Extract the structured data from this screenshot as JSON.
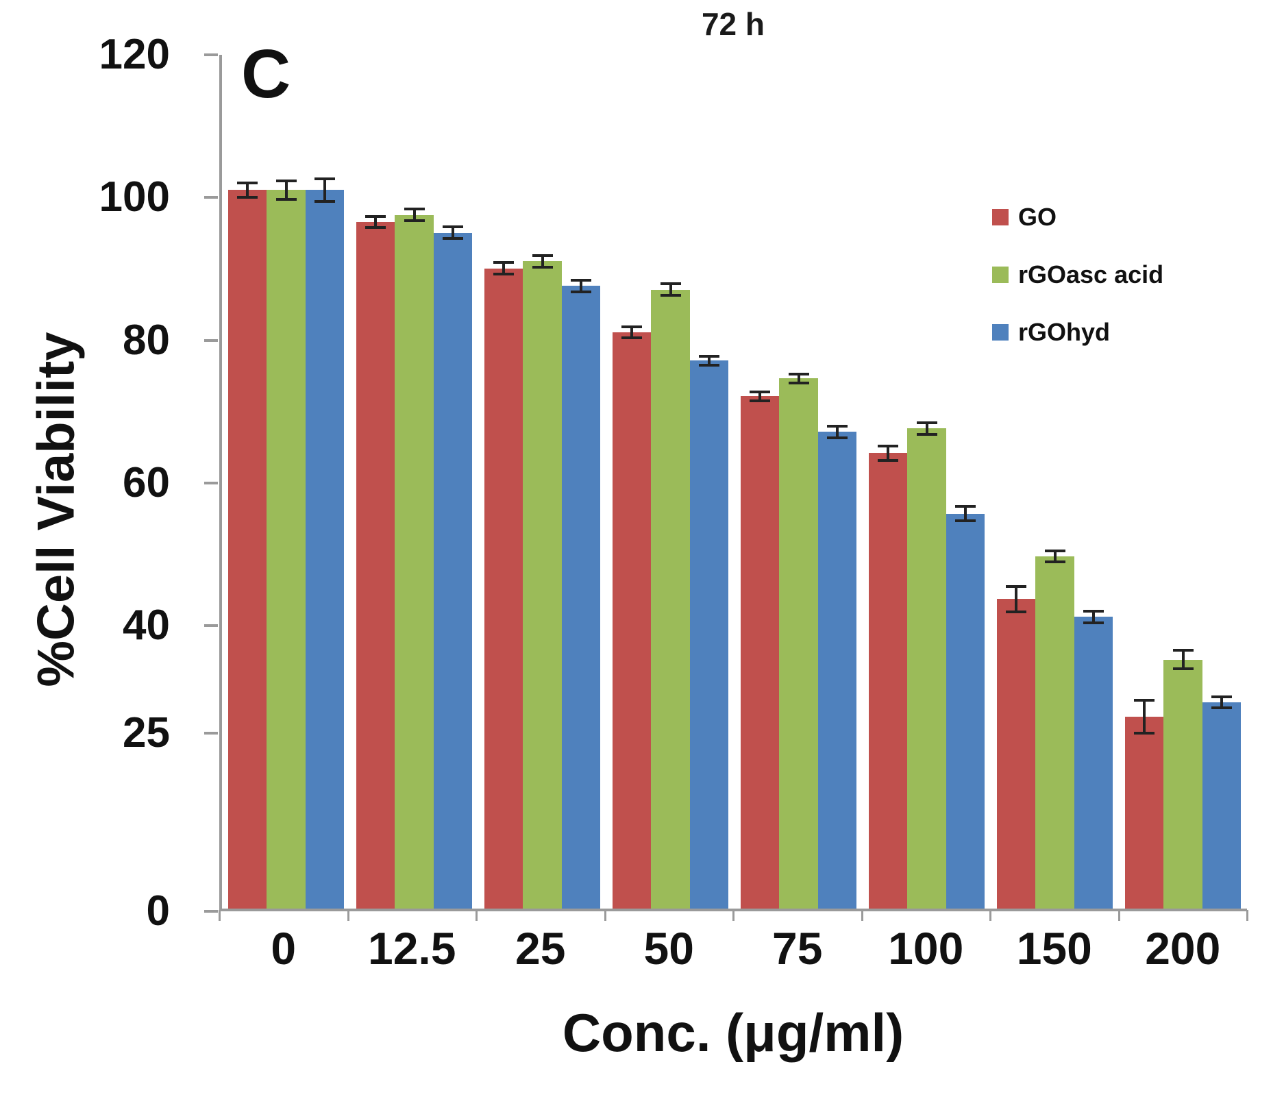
{
  "chart_data": {
    "type": "bar",
    "title": "72 h",
    "panel_label": "C",
    "xlabel": "Conc. (μg/ml)",
    "ylabel": "%Cell Viability",
    "categories": [
      "0",
      "12.5",
      "25",
      "50",
      "75",
      "100",
      "150",
      "200"
    ],
    "ylim": [
      0,
      120
    ],
    "yticks": [
      120,
      100,
      80,
      60,
      40,
      25,
      0
    ],
    "grid": false,
    "legend_position": "right",
    "series": [
      {
        "name": "GO",
        "color": "#c0504d",
        "values": [
          101,
          96.5,
          90,
          81,
          72,
          64,
          43.5,
          27
        ],
        "errors": [
          1.2,
          1,
          1,
          1,
          0.8,
          1.2,
          2,
          2.5
        ]
      },
      {
        "name": "rGOasc acid",
        "color": "#9bbb59",
        "values": [
          101,
          97.5,
          91,
          87,
          74.5,
          67.5,
          49.5,
          35
        ],
        "errors": [
          1.5,
          1,
          1,
          1,
          0.8,
          1,
          1,
          1.5
        ]
      },
      {
        "name": "rGOhyd",
        "color": "#4f81bd",
        "values": [
          101,
          95,
          87.5,
          77,
          67,
          55.5,
          41,
          29
        ],
        "errors": [
          1.8,
          1,
          1,
          0.8,
          1,
          1.2,
          1,
          1
        ]
      }
    ]
  }
}
